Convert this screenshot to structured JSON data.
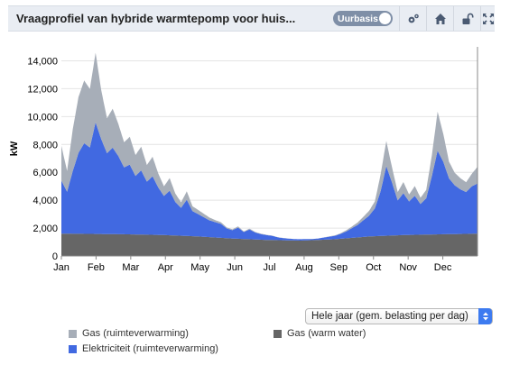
{
  "header": {
    "title": "Vraagprofiel van hybride warmtepomp voor huis...",
    "toggle_label": "Uurbasis",
    "icons": [
      "gears-icon",
      "home-icon",
      "unlock-icon",
      "expand-icon"
    ]
  },
  "select": {
    "value": "Hele jaar (gem. belasting per dag)"
  },
  "legend": [
    {
      "label": "Gas (ruimteverwarming)",
      "color": "#a7aeb8"
    },
    {
      "label": "Gas (warm water)",
      "color": "#666666"
    },
    {
      "label": "Elektriciteit (ruimteverwarming)",
      "color": "#4169e1"
    }
  ],
  "chart_data": {
    "type": "area",
    "stacked": true,
    "ylabel": "kW",
    "ylim": [
      0,
      15000
    ],
    "yticks": [
      "0",
      "2,000",
      "4,000",
      "6,000",
      "8,000",
      "10,000",
      "12,000",
      "14,000"
    ],
    "ytick_values": [
      0,
      2000,
      4000,
      6000,
      8000,
      10000,
      12000,
      14000
    ],
    "months": [
      "Jan",
      "Feb",
      "Mar",
      "Apr",
      "May",
      "Jun",
      "Jul",
      "Aug",
      "Sep",
      "Oct",
      "Nov",
      "Dec"
    ],
    "x_unit": "day of year",
    "xlim": [
      0,
      365
    ],
    "series": [
      {
        "name": "Gas (warm water)",
        "color": "#666666",
        "x": [
          0,
          30,
          60,
          90,
          120,
          150,
          180,
          210,
          240,
          270,
          300,
          330,
          365
        ],
        "values": [
          1600,
          1580,
          1550,
          1500,
          1400,
          1250,
          1150,
          1100,
          1200,
          1400,
          1500,
          1550,
          1600
        ]
      },
      {
        "name": "Elektriciteit (ruimteverwarming)",
        "color": "#4169e1",
        "x": [
          0,
          5,
          10,
          15,
          20,
          25,
          30,
          35,
          40,
          45,
          50,
          55,
          60,
          65,
          70,
          75,
          80,
          85,
          90,
          95,
          100,
          105,
          110,
          115,
          120,
          125,
          130,
          135,
          140,
          145,
          150,
          155,
          160,
          165,
          170,
          175,
          180,
          185,
          190,
          195,
          200,
          205,
          210,
          215,
          220,
          225,
          230,
          235,
          240,
          245,
          250,
          255,
          260,
          265,
          270,
          275,
          280,
          285,
          290,
          295,
          300,
          305,
          310,
          315,
          320,
          325,
          330,
          335,
          340,
          345,
          350,
          355,
          360,
          365
        ],
        "values": [
          3800,
          3000,
          4500,
          5800,
          6500,
          6200,
          8000,
          6800,
          5800,
          6200,
          5600,
          4800,
          5000,
          4200,
          4600,
          3800,
          4200,
          3400,
          2800,
          3200,
          2400,
          2000,
          2600,
          1800,
          1600,
          1400,
          1200,
          1100,
          1000,
          700,
          600,
          800,
          500,
          700,
          500,
          400,
          350,
          300,
          200,
          150,
          120,
          100,
          100,
          100,
          80,
          100,
          150,
          200,
          250,
          350,
          500,
          700,
          900,
          1200,
          1500,
          2000,
          3200,
          5000,
          3800,
          2500,
          3000,
          2400,
          2800,
          2200,
          2600,
          4200,
          6000,
          5200,
          4000,
          3500,
          3200,
          3000,
          3400,
          3600
        ]
      },
      {
        "name": "Gas (ruimteverwarming)",
        "color": "#a7aeb8",
        "x": [
          0,
          5,
          10,
          15,
          20,
          25,
          30,
          35,
          40,
          45,
          50,
          55,
          60,
          65,
          70,
          75,
          80,
          85,
          90,
          95,
          100,
          105,
          110,
          115,
          120,
          125,
          130,
          135,
          140,
          145,
          150,
          155,
          160,
          165,
          170,
          175,
          180,
          185,
          190,
          195,
          200,
          205,
          210,
          215,
          220,
          225,
          230,
          235,
          240,
          245,
          250,
          255,
          260,
          265,
          270,
          275,
          280,
          285,
          290,
          295,
          300,
          305,
          310,
          315,
          320,
          325,
          330,
          335,
          340,
          345,
          350,
          355,
          360,
          365
        ],
        "values": [
          2500,
          1500,
          3000,
          4000,
          4500,
          4200,
          5000,
          3500,
          2500,
          2800,
          2300,
          1800,
          2000,
          1500,
          1700,
          1200,
          1400,
          1000,
          700,
          900,
          600,
          400,
          600,
          350,
          300,
          250,
          200,
          150,
          120,
          80,
          60,
          90,
          40,
          60,
          40,
          30,
          20,
          20,
          10,
          10,
          10,
          0,
          0,
          0,
          0,
          0,
          10,
          20,
          30,
          50,
          80,
          120,
          180,
          250,
          350,
          500,
          1200,
          1800,
          1100,
          600,
          800,
          500,
          700,
          450,
          600,
          1500,
          2800,
          2000,
          1200,
          900,
          800,
          700,
          900,
          1200
        ]
      }
    ]
  }
}
